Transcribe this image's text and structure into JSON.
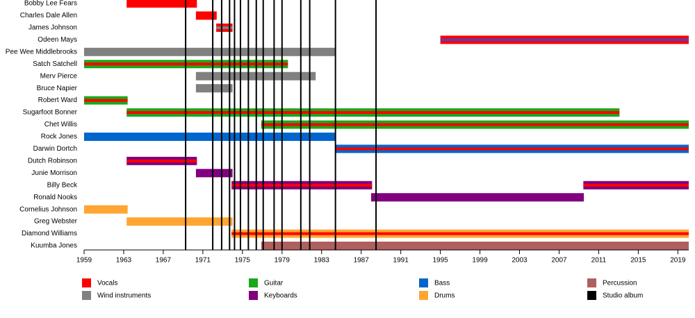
{
  "chart_data": {
    "type": "timeline",
    "xlim": [
      1959,
      2020.1
    ],
    "xticks": [
      1959,
      1963,
      1967,
      1971,
      1975,
      1979,
      1983,
      1987,
      1991,
      1995,
      1999,
      2003,
      2007,
      2011,
      2015,
      2019
    ],
    "members": [
      {
        "name": "Bobby Lee Fears",
        "bars": [
          {
            "start": 1963.3,
            "end": 1970.4,
            "color": "#ff0000"
          }
        ]
      },
      {
        "name": "Charles Dale Allen",
        "bars": [
          {
            "start": 1970.3,
            "end": 1972.4,
            "color": "#ff0000"
          }
        ]
      },
      {
        "name": "James Johnson",
        "bars": [
          {
            "start": 1972.35,
            "end": 1974.0,
            "color": "#ff0000",
            "stripe": "#808080"
          }
        ]
      },
      {
        "name": "Odeen Mays",
        "bars": [
          {
            "start": 1995.0,
            "end": 2020.1,
            "color": "#ff0000",
            "stripe": "#6a3aa8"
          }
        ]
      },
      {
        "name": "Pee Wee Middlebrooks",
        "bars": [
          {
            "start": 1959,
            "end": 1984.4,
            "color": "#808080"
          }
        ]
      },
      {
        "name": "Satch Satchell",
        "bars": [
          {
            "start": 1959,
            "end": 1979.6,
            "color": "#1aa81a",
            "stripe": "#ff0000"
          }
        ]
      },
      {
        "name": "Merv Pierce",
        "bars": [
          {
            "start": 1970.3,
            "end": 1982.4,
            "color": "#808080"
          }
        ]
      },
      {
        "name": "Bruce Napier",
        "bars": [
          {
            "start": 1970.3,
            "end": 1974.0,
            "color": "#808080"
          }
        ]
      },
      {
        "name": "Robert Ward",
        "bars": [
          {
            "start": 1959,
            "end": 1963.4,
            "color": "#1aa81a",
            "stripe": "#ff0000"
          }
        ]
      },
      {
        "name": "Sugarfoot Bonner",
        "bars": [
          {
            "start": 1963.3,
            "end": 2013.1,
            "color": "#1aa81a",
            "stripe": "#ff0000"
          }
        ]
      },
      {
        "name": "Chet Willis",
        "bars": [
          {
            "start": 1976.9,
            "end": 2020.1,
            "color": "#1aa81a",
            "stripe": "#ff0000"
          }
        ]
      },
      {
        "name": "Rock Jones",
        "bars": [
          {
            "start": 1959,
            "end": 1984.4,
            "color": "#0066cc"
          }
        ]
      },
      {
        "name": "Darwin Dortch",
        "bars": [
          {
            "start": 1984.4,
            "end": 2020.1,
            "color": "#0066cc",
            "stripe": "#ff0000"
          }
        ]
      },
      {
        "name": "Dutch Robinson",
        "bars": [
          {
            "start": 1963.3,
            "end": 1970.4,
            "color": "#800080",
            "stripe": "#ff0000"
          }
        ]
      },
      {
        "name": "Junie Morrison",
        "bars": [
          {
            "start": 1970.3,
            "end": 1974.0,
            "color": "#800080"
          }
        ]
      },
      {
        "name": "Billy Beck",
        "bars": [
          {
            "start": 1973.9,
            "end": 1988.1,
            "color": "#800080",
            "stripe": "#ff0000"
          },
          {
            "start": 2009.45,
            "end": 2020.1,
            "color": "#800080",
            "stripe": "#ff0000"
          }
        ]
      },
      {
        "name": "Ronald Nooks",
        "bars": [
          {
            "start": 1988.0,
            "end": 2009.5,
            "color": "#800080"
          }
        ]
      },
      {
        "name": "Cornelius Johnson",
        "bars": [
          {
            "start": 1959,
            "end": 1963.4,
            "color": "#ffa533"
          }
        ]
      },
      {
        "name": "Greg Webster",
        "bars": [
          {
            "start": 1963.3,
            "end": 1974.0,
            "color": "#ffa533"
          }
        ]
      },
      {
        "name": "Diamond Williams",
        "bars": [
          {
            "start": 1973.9,
            "end": 2020.1,
            "color": "#ffa533",
            "stripe": "#ff0000"
          }
        ]
      },
      {
        "name": "Kuumba Jones",
        "bars": [
          {
            "start": 1976.9,
            "end": 2020.1,
            "color": "#b05f5f"
          }
        ]
      }
    ],
    "albums": [
      1969.26,
      1972.0,
      1972.9,
      1973.7,
      1974.2,
      1974.8,
      1975.6,
      1976.4,
      1977.1,
      1978.2,
      1979.0,
      1980.9,
      1981.8,
      1984.4,
      1988.5
    ],
    "album_color": "#000000",
    "legend": [
      {
        "name": "Vocals",
        "color": "#ff0000"
      },
      {
        "name": "Wind instruments",
        "color": "#808080"
      },
      {
        "name": "Guitar",
        "color": "#1aa81a"
      },
      {
        "name": "Keyboards",
        "color": "#800080"
      },
      {
        "name": "Bass",
        "color": "#0066cc"
      },
      {
        "name": "Drums",
        "color": "#ffa533"
      },
      {
        "name": "Percussion",
        "color": "#b05f5f"
      },
      {
        "name": "Studio album",
        "color": "#000000"
      }
    ]
  }
}
